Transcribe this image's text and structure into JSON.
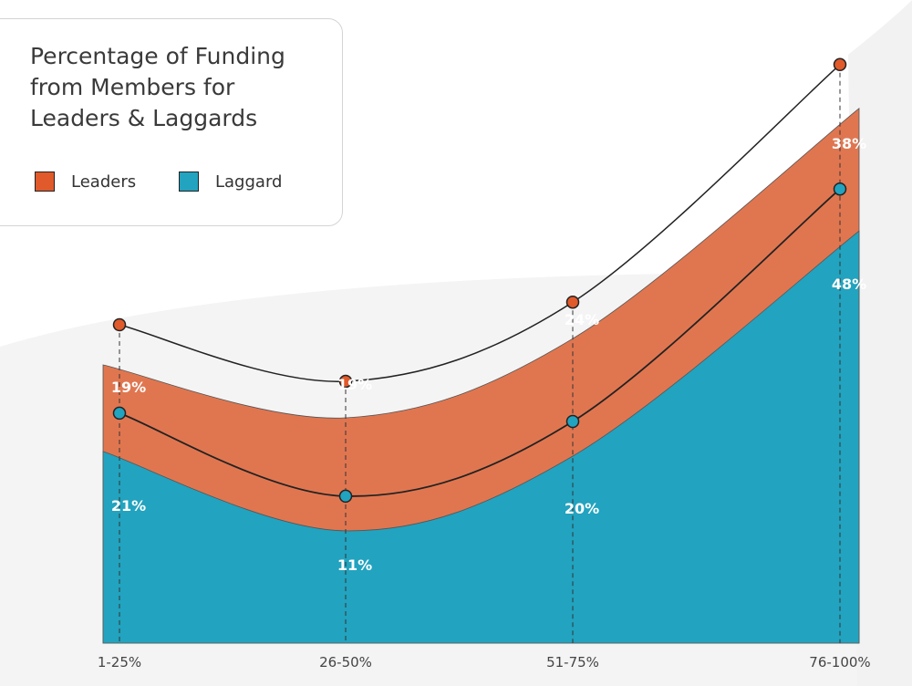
{
  "chart_data": {
    "type": "area",
    "title": "Percentage of Funding from Members for Leaders & Laggards",
    "categories": [
      "1-25%",
      "26-50%",
      "51-75%",
      "76-100%"
    ],
    "series": [
      {
        "name": "Leaders",
        "values": [
          19,
          19,
          24,
          38
        ],
        "labels": [
          "19%",
          "19%",
          "24%",
          "38%"
        ],
        "color": "#e07650"
      },
      {
        "name": "Laggard",
        "values": [
          21,
          11,
          20,
          48
        ],
        "labels": [
          "21%",
          "11%",
          "20%",
          "48%"
        ],
        "color": "#22a3bf"
      }
    ],
    "stacked": true,
    "legend": "top-left",
    "grid": false
  },
  "colors": {
    "leaders_marker": "#e05a2b",
    "laggard_marker": "#22a3bf"
  }
}
